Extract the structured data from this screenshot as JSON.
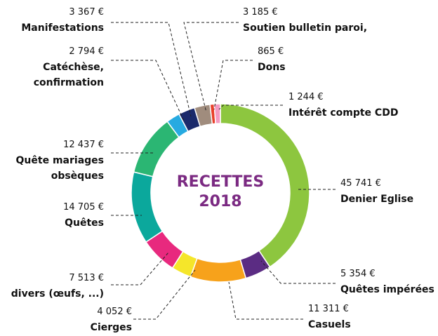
{
  "chart_data": {
    "type": "donut",
    "title": "RECETTES 2018",
    "categories": [
      "Denier Eglise",
      "Quêtes impérées",
      "Casuels",
      "Cierges",
      "divers (œufs, ...)",
      "Quêtes",
      "Quête mariages obsèques",
      "Catéchèse, confirmation",
      "Manifestations",
      "Soutien bulletin paroi,",
      "Dons",
      "Intérêt compte CDD"
    ],
    "values": [
      45741,
      5354,
      11311,
      4052,
      7513,
      14705,
      12437,
      2794,
      3367,
      3185,
      865,
      1244
    ],
    "value_labels": [
      "45 741 €",
      "5 354 €",
      "11 311 €",
      "4 052 €",
      "7 513 €",
      "14 705 €",
      "12 437 €",
      "2 794 €",
      "3 367 €",
      "3 185 €",
      "865 €",
      "1 244 €"
    ],
    "colors": [
      "#8dc63f",
      "#5b2c83",
      "#f7a21b",
      "#f5e62a",
      "#e8297e",
      "#0ba89c",
      "#2bb673",
      "#27aae1",
      "#1b2a6b",
      "#a08c7d",
      "#e8402a",
      "#f49ac1"
    ]
  }
}
